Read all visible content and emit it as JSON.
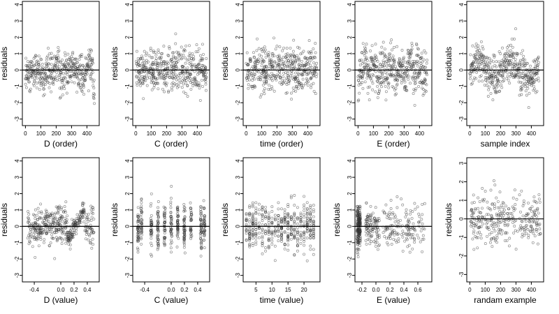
{
  "chart_data": [
    {
      "type": "scatter",
      "xlabel": "D (order)",
      "ylabel": "residuals",
      "xlim": [
        -20,
        480
      ],
      "ylim": [
        -3.4,
        4.2
      ],
      "xticks": [
        0,
        100,
        200,
        300,
        400
      ],
      "yticks": [
        -3,
        -2,
        -1,
        0,
        1,
        2,
        3,
        4
      ],
      "hline": 0,
      "pattern": "order_trend"
    },
    {
      "type": "scatter",
      "xlabel": "C (order)",
      "ylabel": "residuals",
      "xlim": [
        -20,
        480
      ],
      "ylim": [
        -3.4,
        4.2
      ],
      "xticks": [
        0,
        100,
        200,
        300,
        400
      ],
      "yticks": [
        -3,
        -2,
        -1,
        0,
        1,
        2,
        3,
        4
      ],
      "hline": 0,
      "pattern": "order_random"
    },
    {
      "type": "scatter",
      "xlabel": "time (order)",
      "ylabel": "residuals",
      "xlim": [
        -20,
        480
      ],
      "ylim": [
        -3.4,
        4.2
      ],
      "xticks": [
        0,
        100,
        200,
        300,
        400
      ],
      "yticks": [
        -3,
        -2,
        -1,
        0,
        1,
        2,
        3,
        4
      ],
      "hline": 0,
      "pattern": "order_random"
    },
    {
      "type": "scatter",
      "xlabel": "E (order)",
      "ylabel": "residuals",
      "xlim": [
        -20,
        480
      ],
      "ylim": [
        -3.4,
        4.2
      ],
      "xticks": [
        0,
        100,
        200,
        300,
        400
      ],
      "yticks": [
        -3,
        -2,
        -1,
        0,
        1,
        2,
        3,
        4
      ],
      "hline": 0,
      "pattern": "order_blocks"
    },
    {
      "type": "scatter",
      "xlabel": "sample index",
      "ylabel": "residuals",
      "xlim": [
        -20,
        480
      ],
      "ylim": [
        -3.4,
        4.2
      ],
      "xticks": [
        0,
        100,
        200,
        300,
        400
      ],
      "yticks": [
        -3,
        -2,
        -1,
        0,
        1,
        2,
        3,
        4
      ],
      "hline": 0,
      "pattern": "order_mixed"
    },
    {
      "type": "scatter",
      "xlabel": "D (value)",
      "ylabel": "residuals",
      "xlim": [
        -0.58,
        0.58
      ],
      "ylim": [
        -3.4,
        4.2
      ],
      "xticks": [
        -0.4,
        0.0,
        0.2,
        0.4
      ],
      "xtick_labels": [
        "-0.4",
        "0.0",
        "0.2",
        "0.4"
      ],
      "yticks": [
        -3,
        -2,
        -1,
        0,
        1,
        2,
        3,
        4
      ],
      "hline": 0,
      "pattern": "value_D"
    },
    {
      "type": "scatter",
      "xlabel": "C (value)",
      "ylabel": "residuals",
      "xlim": [
        -0.58,
        0.58
      ],
      "ylim": [
        -3.4,
        4.2
      ],
      "xticks": [
        -0.4,
        0.0,
        0.2,
        0.4
      ],
      "xtick_labels": [
        "-0.4",
        "0.0",
        "0.2",
        "0.4"
      ],
      "yticks": [
        -3,
        -2,
        -1,
        0,
        1,
        2,
        3,
        4
      ],
      "hline": 0,
      "pattern": "value_C"
    },
    {
      "type": "scatter",
      "xlabel": "time (value)",
      "ylabel": "residuals",
      "xlim": [
        1,
        25
      ],
      "ylim": [
        -3.4,
        4.2
      ],
      "xticks": [
        5,
        10,
        15,
        20
      ],
      "xtick_labels": [
        "5",
        "10",
        "15",
        "20"
      ],
      "yticks": [
        -3,
        -2,
        -1,
        0,
        1,
        2,
        3,
        4
      ],
      "hline": 0,
      "pattern": "value_time"
    },
    {
      "type": "scatter",
      "xlabel": "E (value)",
      "ylabel": "residuals",
      "xlim": [
        -0.3,
        0.8
      ],
      "ylim": [
        -3.4,
        4.2
      ],
      "xticks": [
        -0.2,
        0.0,
        0.2,
        0.4,
        0.6
      ],
      "xtick_labels": [
        "-0.2",
        "0.0",
        "0.2",
        "0.4",
        "0.6"
      ],
      "yticks": [
        -3,
        -2,
        -1,
        0,
        1,
        2,
        3,
        4
      ],
      "hline": 0,
      "pattern": "value_E"
    },
    {
      "type": "scatter",
      "xlabel": "randam example",
      "ylabel": "residuals",
      "xlim": [
        -20,
        480
      ],
      "ylim": [
        -3.4,
        3.3
      ],
      "xticks": [
        0,
        100,
        200,
        300,
        400
      ],
      "yticks": [
        -3,
        -2,
        -1,
        0,
        1,
        2,
        3
      ],
      "hline": 0,
      "pattern": "order_random"
    }
  ]
}
